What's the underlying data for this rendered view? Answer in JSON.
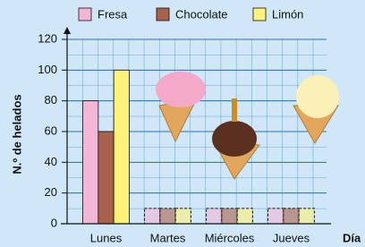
{
  "chart_data": {
    "type": "bar",
    "y_label": "N.º de helados",
    "x_label": "Día",
    "categories": [
      "Lunes",
      "Martes",
      "Miércoles",
      "Jueves"
    ],
    "series": [
      {
        "name": "Fresa",
        "color": "#f2b6d6",
        "values": [
          80,
          null,
          null,
          null
        ]
      },
      {
        "name": "Chocolate",
        "color": "#a8624c",
        "values": [
          60,
          null,
          null,
          null
        ]
      },
      {
        "name": "Limón",
        "color": "#fff27a",
        "values": [
          100,
          null,
          null,
          null
        ]
      }
    ],
    "ylim": [
      0,
      120
    ],
    "yticks": [
      0,
      20,
      40,
      60,
      80,
      100,
      120
    ],
    "grid": true
  }
}
